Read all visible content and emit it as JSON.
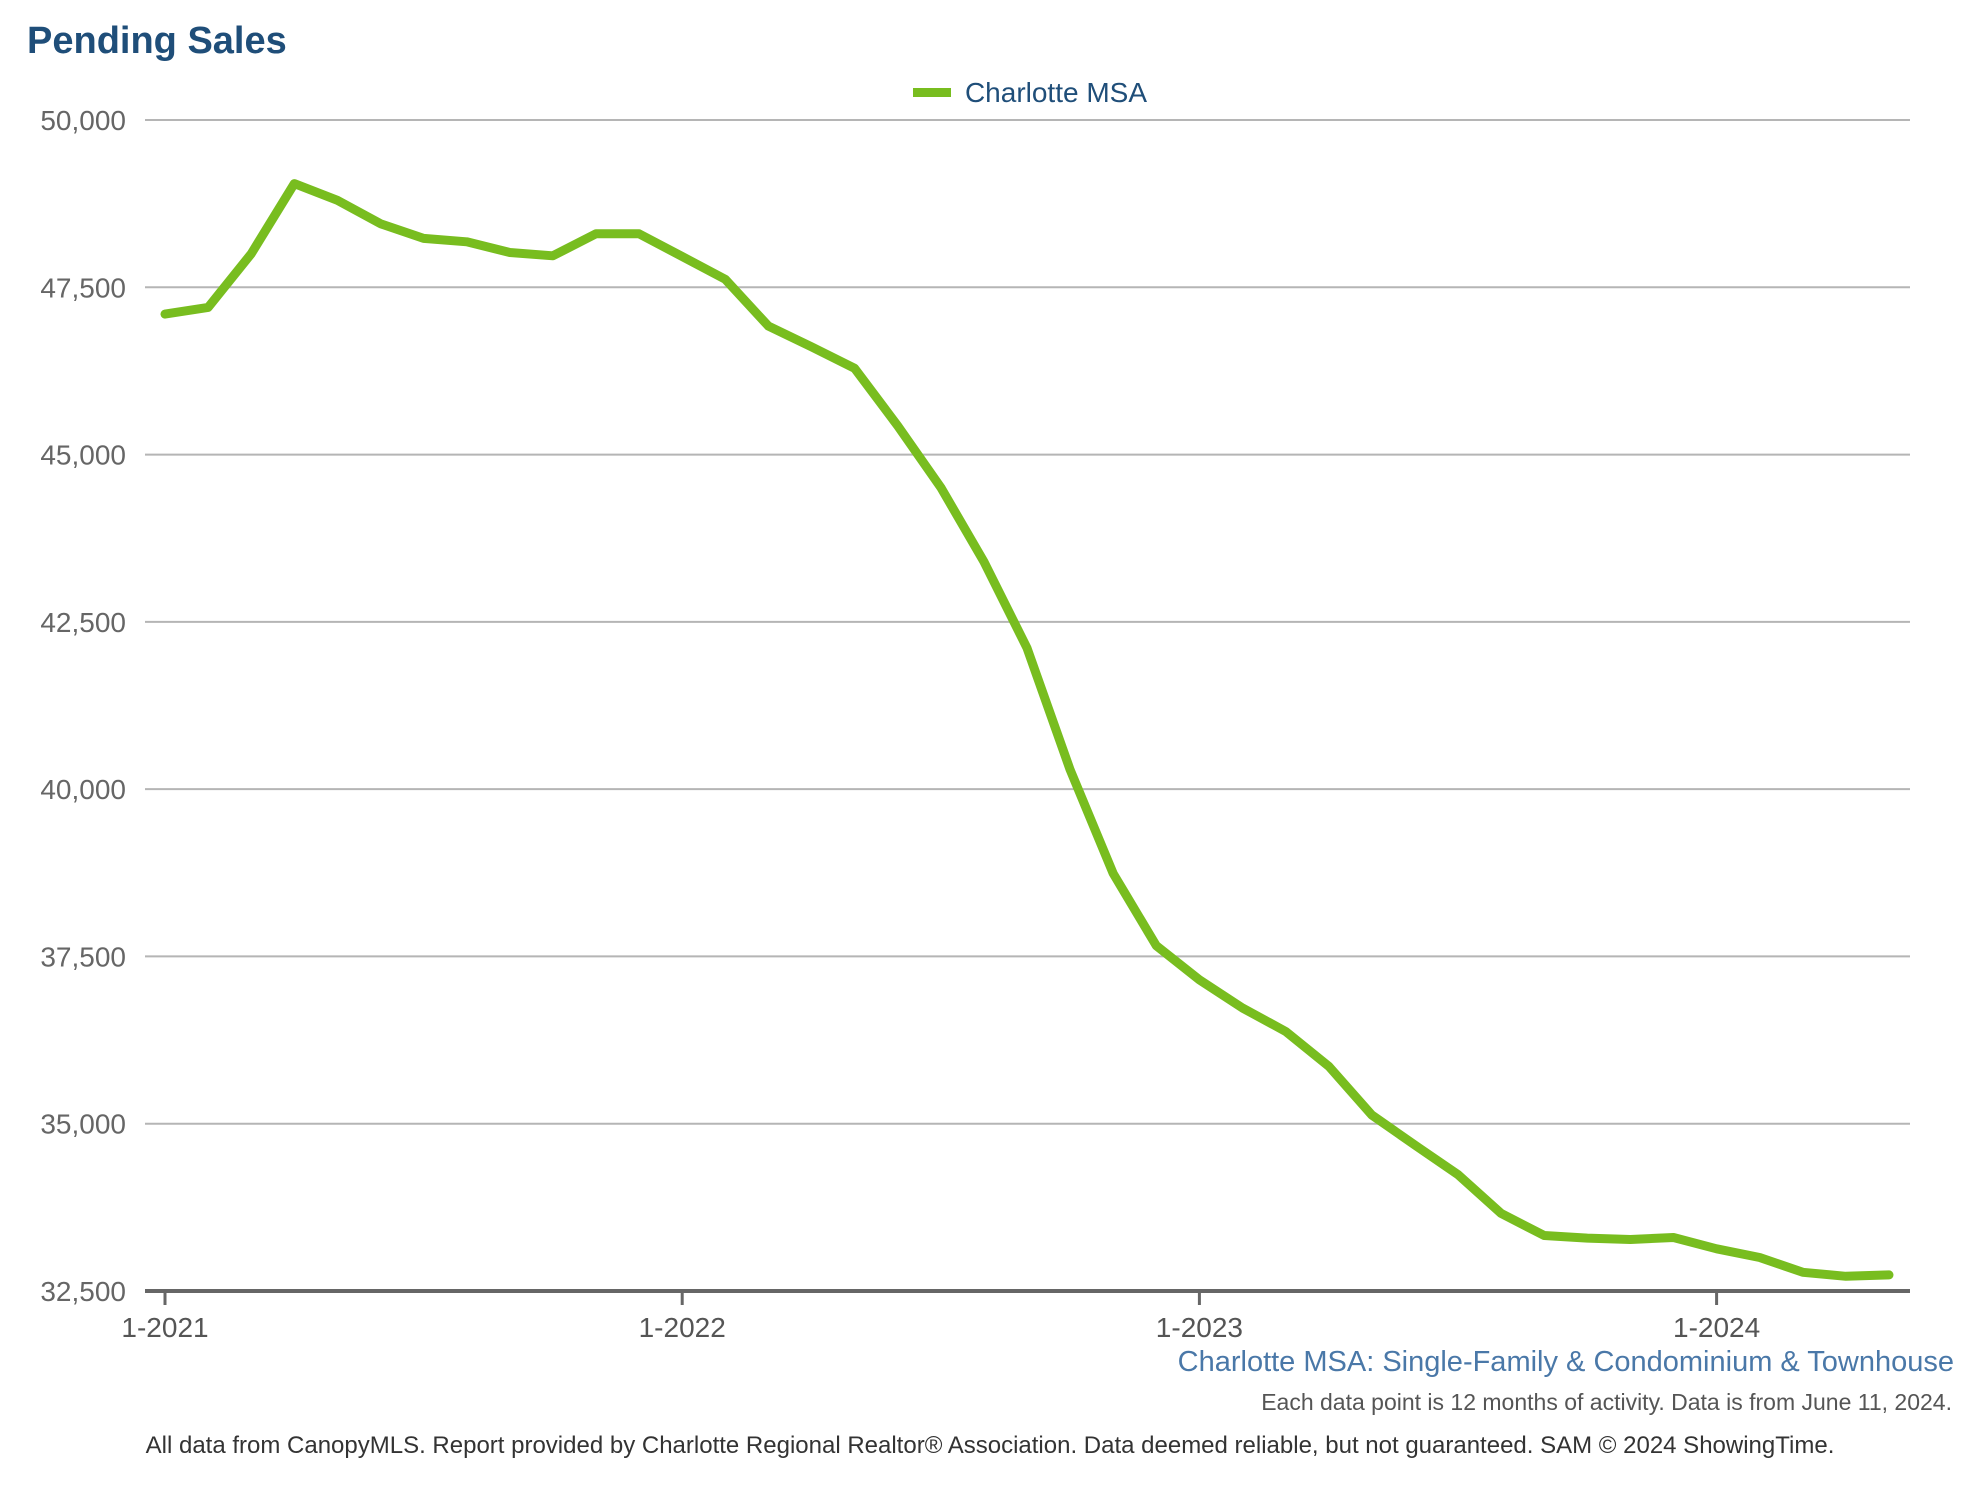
{
  "header": {
    "title": "Pending Sales"
  },
  "legend": {
    "label": "Charlotte MSA"
  },
  "subtitle": "Charlotte MSA: Single-Family & Condominium & Townhouse",
  "note": "Each data point is 12 months of activity. Data is from June 11, 2024.",
  "footer": "All data from CanopyMLS. Report provided by Charlotte Regional Realtor® Association. Data deemed reliable, but not guaranteed. SAM © 2024 ShowingTime.",
  "colors": {
    "series": "#78bd1f",
    "title": "#1f4e79",
    "grid": "#b5b5b5",
    "axis": "#666666"
  },
  "chart_data": {
    "type": "line",
    "title": "Pending Sales",
    "xlabel": "",
    "ylabel": "",
    "ylim": [
      32500,
      50000
    ],
    "yticks": [
      32500,
      35000,
      37500,
      40000,
      42500,
      45000,
      47500,
      50000
    ],
    "ytick_labels": [
      "32,500",
      "35,000",
      "37,500",
      "40,000",
      "42,500",
      "45,000",
      "47,500",
      "50,000"
    ],
    "xtick_labels": [
      "1-2021",
      "1-2022",
      "1-2023",
      "1-2024"
    ],
    "grid": true,
    "legend_position": "top-center",
    "series": [
      {
        "name": "Charlotte MSA",
        "x": [
          "2021-01",
          "2021-02",
          "2021-03",
          "2021-04",
          "2021-05",
          "2021-06",
          "2021-07",
          "2021-08",
          "2021-09",
          "2021-10",
          "2021-11",
          "2021-12",
          "2022-01",
          "2022-02",
          "2022-03",
          "2022-04",
          "2022-05",
          "2022-06",
          "2022-07",
          "2022-08",
          "2022-09",
          "2022-10",
          "2022-11",
          "2022-12",
          "2023-01",
          "2023-02",
          "2023-03",
          "2023-04",
          "2023-05",
          "2023-06",
          "2023-07",
          "2023-08",
          "2023-09",
          "2023-10",
          "2023-11",
          "2023-12",
          "2024-01",
          "2024-02",
          "2024-03",
          "2024-04",
          "2024-05"
        ],
        "values": [
          47100,
          47200,
          48000,
          49050,
          48800,
          48450,
          48230,
          48180,
          48020,
          47970,
          48300,
          48300,
          47960,
          47620,
          46920,
          46610,
          46290,
          45430,
          44510,
          43400,
          42110,
          40290,
          38740,
          37660,
          37150,
          36730,
          36380,
          35860,
          35130,
          34680,
          34240,
          33660,
          33330,
          33290,
          33270,
          33300,
          33130,
          33000,
          32780,
          32720,
          32740
        ]
      }
    ]
  }
}
